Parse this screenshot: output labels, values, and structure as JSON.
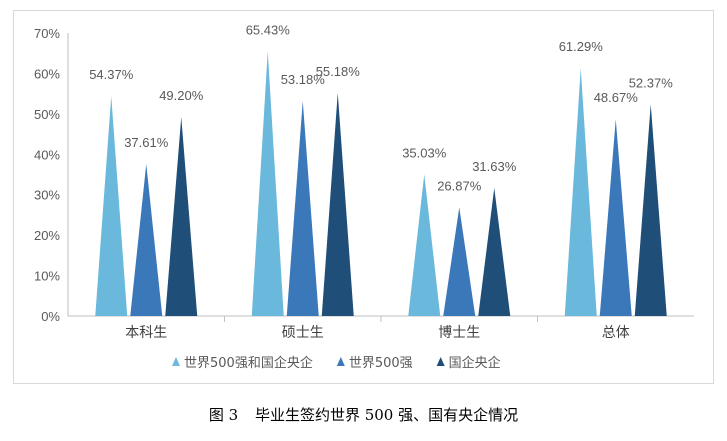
{
  "chart_data": {
    "type": "bar",
    "categories": [
      "本科生",
      "硕士生",
      "博士生",
      "总体"
    ],
    "series": [
      {
        "name": "世界500强和国企央企",
        "values": [
          54.37,
          65.43,
          35.03,
          61.29
        ],
        "labels": [
          "54.37%",
          "65.43%",
          "35.03%",
          "61.29%"
        ],
        "color": "#6ab9dc"
      },
      {
        "name": "世界500强",
        "values": [
          37.61,
          53.18,
          26.87,
          48.67
        ],
        "labels": [
          "37.61%",
          "53.18%",
          "26.87%",
          "48.67%"
        ],
        "color": "#3b78b9"
      },
      {
        "name": "国企央企",
        "values": [
          49.2,
          55.18,
          31.63,
          52.37
        ],
        "labels": [
          "49.20%",
          "55.18%",
          "31.63%",
          "52.37%"
        ],
        "color": "#1f4e79"
      }
    ],
    "ylim": [
      0,
      70
    ],
    "yticks": [
      "0%",
      "10%",
      "20%",
      "30%",
      "40%",
      "50%",
      "60%",
      "70%"
    ],
    "grid": false,
    "legend_position": "bottom",
    "bar_shape": "triangle"
  },
  "caption": {
    "figure_no": "图 3",
    "title": "毕业生签约世界 500 强、国有央企情况"
  }
}
